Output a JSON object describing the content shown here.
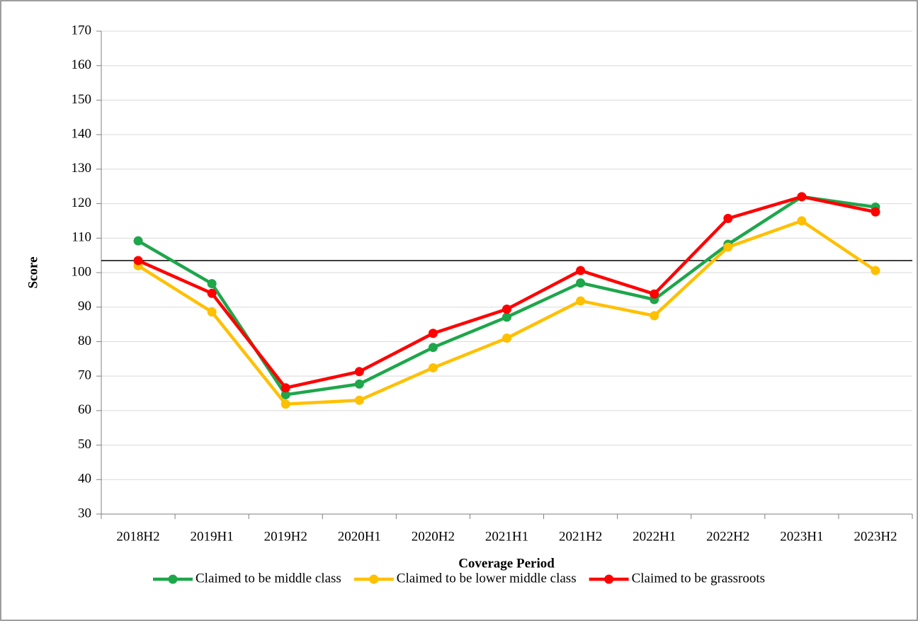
{
  "chart_data": {
    "type": "line",
    "x_label": "Coverage Period",
    "y_label": "Score",
    "categories": [
      "2018H2",
      "2019H1",
      "2019H2",
      "2020H1",
      "2020H2",
      "2021H1",
      "2021H2",
      "2022H1",
      "2022H2",
      "2023H1",
      "2023H2"
    ],
    "series": [
      {
        "name": "Claimed to be middle class",
        "color": "#1ea64b",
        "values": [
          109.2,
          96.8,
          64.6,
          67.7,
          78.3,
          87.1,
          97.0,
          92.2,
          108.2,
          122.0,
          119.0
        ]
      },
      {
        "name": "Claimed to be lower middle class",
        "color": "#ffc000",
        "values": [
          102.0,
          88.6,
          61.9,
          63.0,
          72.4,
          81.0,
          91.8,
          87.5,
          107.4,
          115.0,
          100.6
        ]
      },
      {
        "name": "Claimed to be grassroots",
        "color": "#ff0000",
        "values": [
          103.5,
          94.0,
          66.6,
          71.3,
          82.4,
          89.4,
          100.6,
          93.8,
          115.7,
          122.0,
          117.6
        ]
      }
    ],
    "reference_line": 103.5,
    "ylim": [
      30,
      170
    ],
    "yticks": [
      30,
      40,
      50,
      60,
      70,
      80,
      90,
      100,
      110,
      120,
      130,
      140,
      150,
      160,
      170
    ],
    "grid": true,
    "legend": "bottom"
  }
}
